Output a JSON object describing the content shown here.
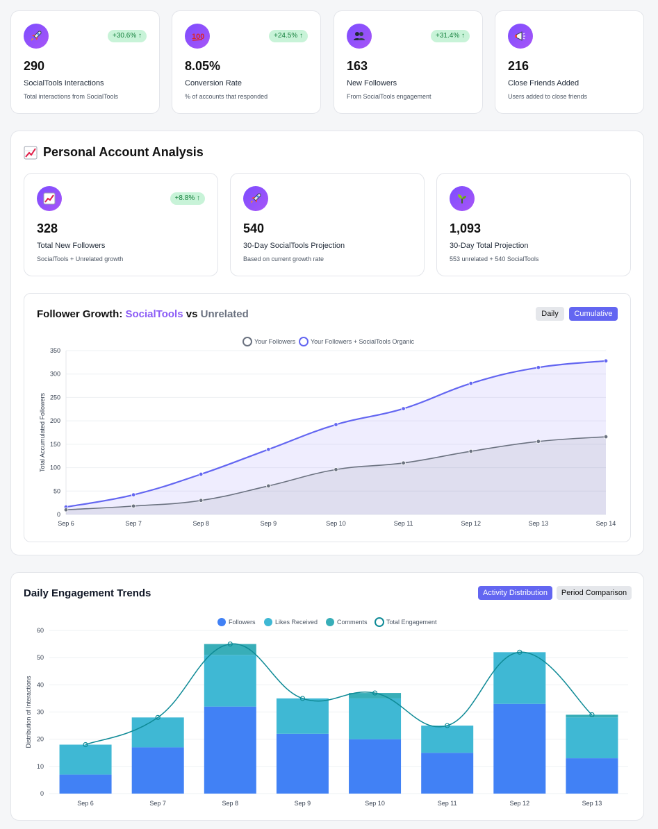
{
  "top_stats": [
    {
      "icon": "rocket-icon",
      "badge": "+30.6% ↑",
      "value": "290",
      "label": "SocialTools Interactions",
      "desc": "Total interactions from SocialTools"
    },
    {
      "icon": "hundred-points-icon",
      "badge": "+24.5% ↑",
      "value": "8.05%",
      "label": "Conversion Rate",
      "desc": "% of accounts that responded"
    },
    {
      "icon": "people-icon",
      "badge": "+31.4% ↑",
      "value": "163",
      "label": "New Followers",
      "desc": "From SocialTools engagement"
    },
    {
      "icon": "megaphone-icon",
      "badge": "",
      "value": "216",
      "label": "Close Friends Added",
      "desc": "Users added to close friends"
    }
  ],
  "personal": {
    "title_icon": "chart-increasing-icon",
    "title": "Personal Account Analysis",
    "stats": [
      {
        "icon": "chart-increasing-icon",
        "badge": "+8.8% ↑",
        "value": "328",
        "label": "Total New Followers",
        "desc": "SocialTools + Unrelated growth"
      },
      {
        "icon": "rocket-icon",
        "badge": "",
        "value": "540",
        "label": "30-Day SocialTools Projection",
        "desc": "Based on current growth rate"
      },
      {
        "icon": "seedling-icon",
        "badge": "",
        "value": "1,093",
        "label": "30-Day Total Projection",
        "desc": "553 unrelated + 540 SocialTools"
      }
    ]
  },
  "growth": {
    "title_prefix": "Follower Growth:",
    "title_brand": "SocialTools",
    "title_vs": "vs",
    "title_other": "Unrelated",
    "buttons": {
      "daily": "Daily",
      "cumulative": "Cumulative"
    },
    "colors": {
      "organic": "#6366f1",
      "followers": "#6b7280"
    }
  },
  "engagement": {
    "title": "Daily Engagement Trends",
    "buttons": {
      "activity": "Activity Distribution",
      "period": "Period Comparison"
    },
    "colors": {
      "followers": "#4181f5",
      "likes": "#3fb8d4",
      "comments": "#38aeb8",
      "total": "#0e8a96"
    }
  },
  "chart_data": [
    {
      "type": "area",
      "title": "",
      "xlabel": "",
      "ylabel": "Total Accumulated Followers",
      "ylim": [
        0,
        350
      ],
      "yticks": [
        0,
        50,
        100,
        150,
        200,
        250,
        300,
        350
      ],
      "grid": true,
      "legend": "top-center",
      "categories": [
        "Sep 6",
        "Sep 7",
        "Sep 8",
        "Sep 9",
        "Sep 10",
        "Sep 11",
        "Sep 12",
        "Sep 13",
        "Sep 14"
      ],
      "series": [
        {
          "name": "Your Followers",
          "values": [
            10,
            18,
            30,
            61,
            96,
            110,
            135,
            156,
            166
          ]
        },
        {
          "name": "Your Followers + SocialTools Organic",
          "values": [
            16,
            42,
            86,
            139,
            192,
            226,
            280,
            314,
            328
          ]
        }
      ]
    },
    {
      "type": "bar",
      "stacked": true,
      "title": "",
      "xlabel": "",
      "ylabel": "Distribution of Interactions",
      "ylim": [
        0,
        60
      ],
      "yticks": [
        0,
        10,
        20,
        30,
        40,
        50,
        60
      ],
      "grid": true,
      "legend": "top-center",
      "categories": [
        "Sep 6",
        "Sep 7",
        "Sep 8",
        "Sep 9",
        "Sep 10",
        "Sep 11",
        "Sep 12",
        "Sep 13"
      ],
      "series": [
        {
          "name": "Followers",
          "values": [
            7,
            17,
            32,
            22,
            20,
            15,
            33,
            13
          ]
        },
        {
          "name": "Likes Received",
          "values": [
            11,
            11,
            19,
            13,
            15,
            10,
            19,
            15
          ]
        },
        {
          "name": "Comments",
          "values": [
            0,
            0,
            4,
            0,
            2,
            0,
            0,
            1
          ]
        },
        {
          "name": "Total Engagement",
          "type": "line",
          "values": [
            18,
            28,
            55,
            35,
            37,
            25,
            52,
            29
          ]
        }
      ]
    }
  ]
}
